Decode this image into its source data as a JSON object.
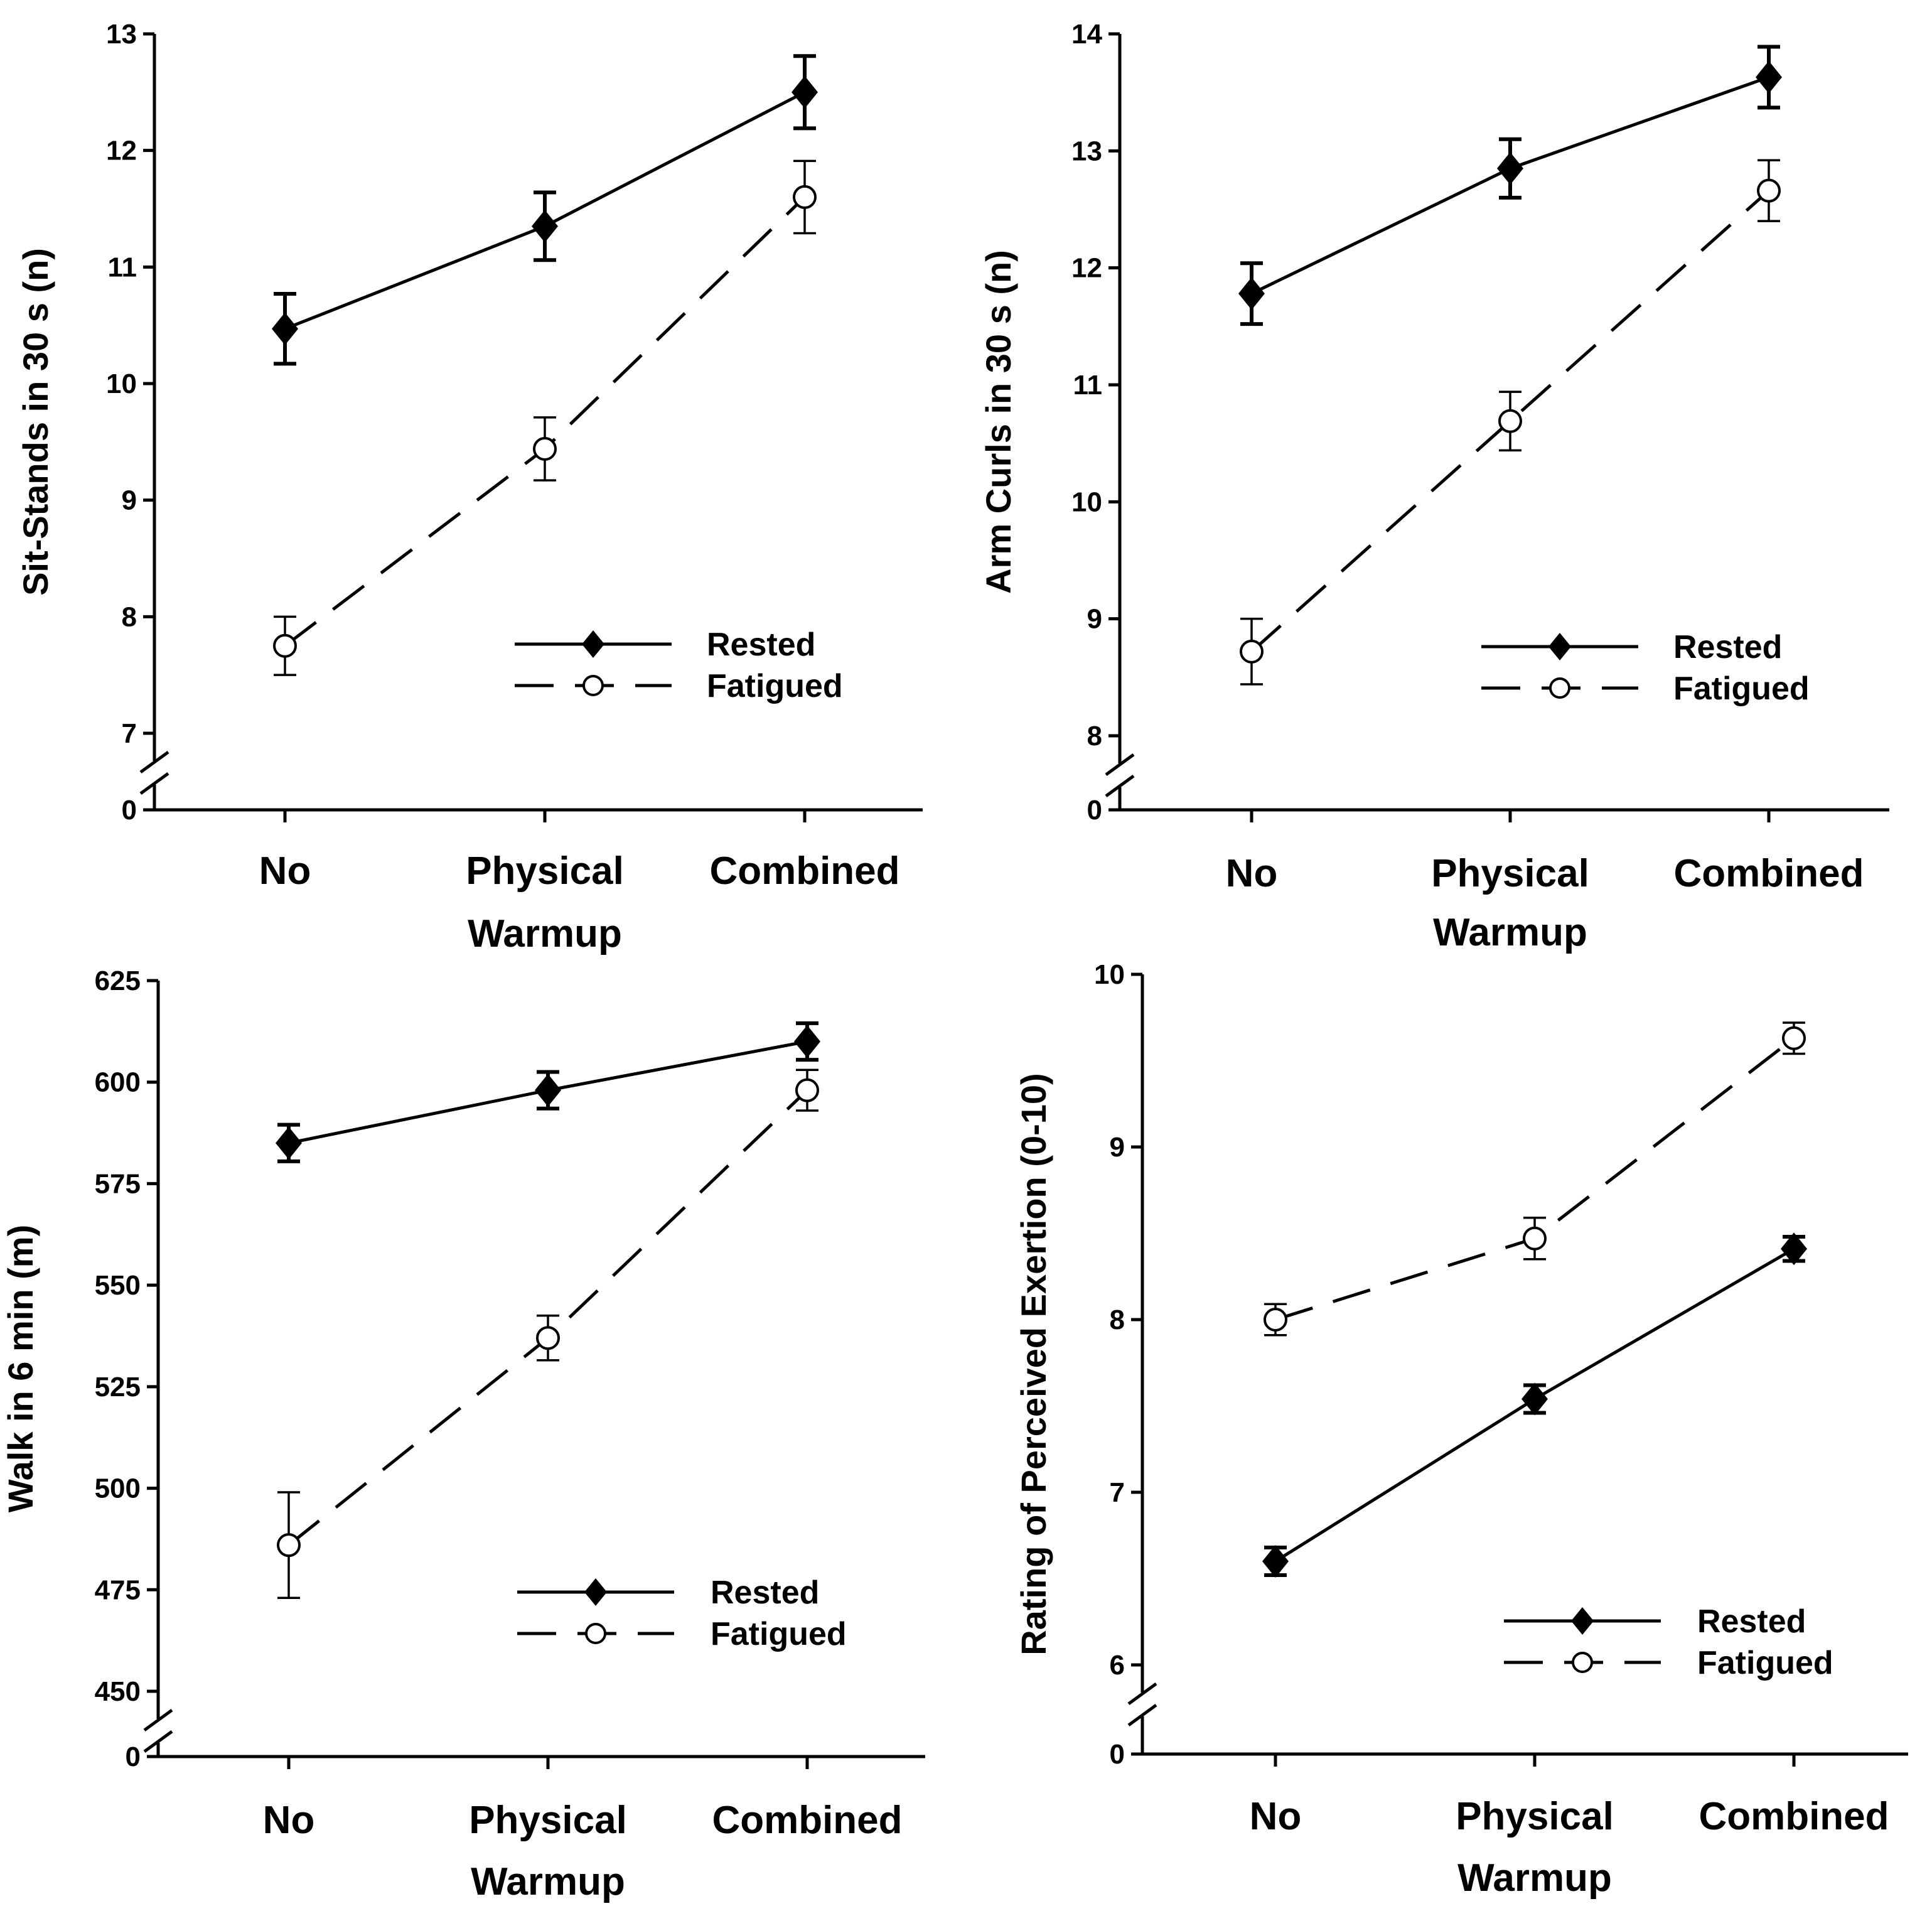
{
  "chart_data": [
    {
      "type": "line",
      "categories": [
        "No",
        "Physical",
        "Combined"
      ],
      "xlabel": "Warmup",
      "ylabel": "Sit-Stands in 30 s (n)",
      "ylim": [
        7,
        13
      ],
      "yticks": [
        "7",
        "8",
        "9",
        "10",
        "11",
        "12",
        "13"
      ],
      "y_break_label": "0",
      "legend_position": "lower-right",
      "series": [
        {
          "name": "Rested",
          "values": [
            10.47,
            11.35,
            12.5
          ],
          "errors": [
            0.3,
            0.29,
            0.31
          ],
          "marker": "filled-diamond",
          "line": "solid"
        },
        {
          "name": "Fatigued",
          "values": [
            7.75,
            9.44,
            11.6
          ],
          "errors": [
            0.25,
            0.27,
            0.31
          ],
          "marker": "open-circle",
          "line": "dashed"
        }
      ]
    },
    {
      "type": "line",
      "categories": [
        "No",
        "Physical",
        "Combined"
      ],
      "xlabel": "Warmup",
      "ylabel": "Arm Curls in 30 s (n)",
      "ylim": [
        8,
        14
      ],
      "yticks": [
        "8",
        "9",
        "10",
        "11",
        "12",
        "13",
        "14"
      ],
      "y_break_label": "0",
      "legend_position": "lower-right",
      "series": [
        {
          "name": "Rested",
          "values": [
            11.78,
            12.85,
            13.63
          ],
          "errors": [
            0.26,
            0.25,
            0.26
          ],
          "marker": "filled-diamond",
          "line": "solid"
        },
        {
          "name": "Fatigued",
          "values": [
            8.72,
            10.69,
            12.66
          ],
          "errors": [
            0.28,
            0.25,
            0.26
          ],
          "marker": "open-circle",
          "line": "dashed"
        }
      ]
    },
    {
      "type": "line",
      "categories": [
        "No",
        "Physical",
        "Combined"
      ],
      "xlabel": "Warmup",
      "ylabel": "Walk in 6 min (m)",
      "ylim": [
        450,
        625
      ],
      "yticks": [
        "450",
        "475",
        "500",
        "525",
        "550",
        "575",
        "600",
        "625"
      ],
      "y_break_label": "0",
      "legend_position": "lower-right",
      "series": [
        {
          "name": "Rested",
          "values": [
            585,
            598,
            610
          ],
          "errors": [
            4.5,
            4.5,
            4.5
          ],
          "marker": "filled-diamond",
          "line": "solid"
        },
        {
          "name": "Fatigued",
          "values": [
            486,
            537,
            598
          ],
          "errors": [
            13,
            5.5,
            5
          ],
          "marker": "open-circle",
          "line": "dashed"
        }
      ]
    },
    {
      "type": "line",
      "categories": [
        "No",
        "Physical",
        "Combined"
      ],
      "xlabel": "Warmup",
      "ylabel": "Rating of Perceived Exertion (0-10)",
      "ylim": [
        6,
        10
      ],
      "yticks": [
        "6",
        "7",
        "8",
        "9",
        "10"
      ],
      "y_break_label": "0",
      "legend_position": "lower-right",
      "series": [
        {
          "name": "Rested",
          "values": [
            6.6,
            7.54,
            8.41
          ],
          "errors": [
            0.08,
            0.08,
            0.07
          ],
          "marker": "filled-diamond",
          "line": "solid"
        },
        {
          "name": "Fatigued",
          "values": [
            8.0,
            8.47,
            9.63
          ],
          "errors": [
            0.09,
            0.12,
            0.09
          ],
          "marker": "open-circle",
          "line": "dashed"
        }
      ]
    }
  ]
}
